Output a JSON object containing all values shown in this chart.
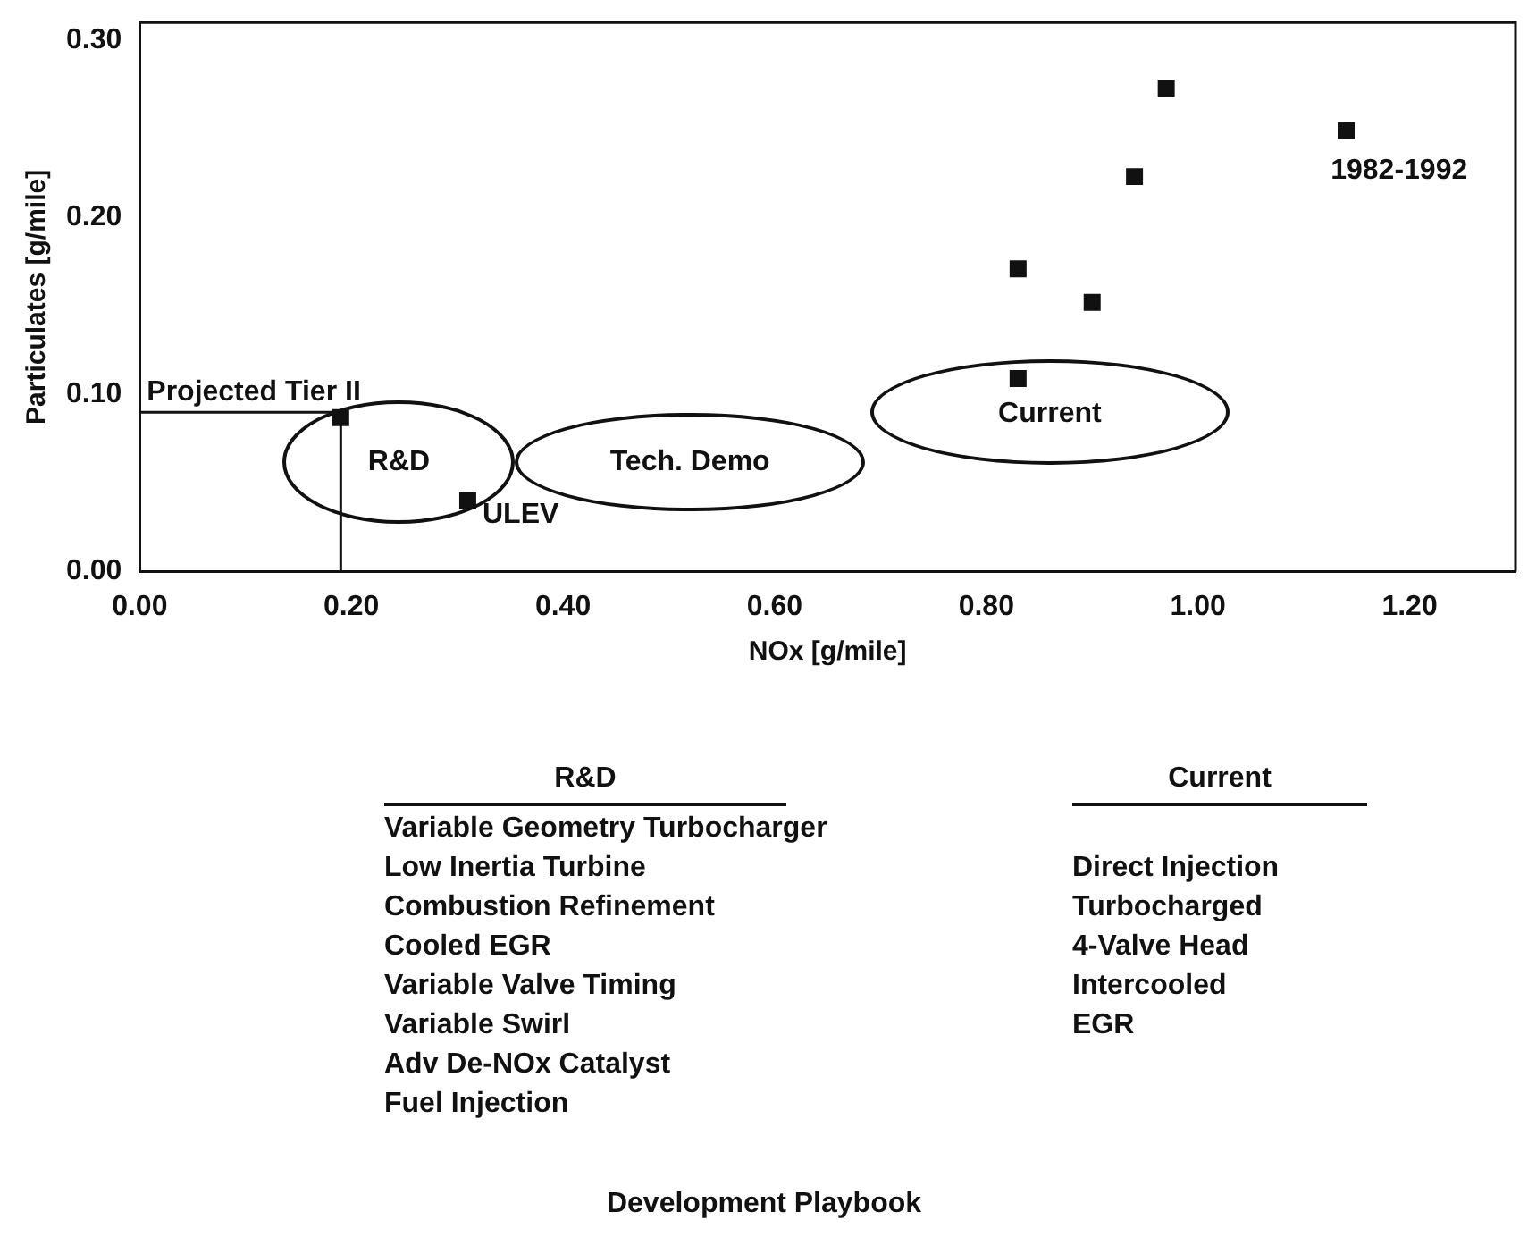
{
  "chart_data": {
    "type": "scatter",
    "xlabel": "NOx [g/mile]",
    "ylabel": "Particulates [g/mile]",
    "x": [
      0.19,
      0.31,
      0.83,
      0.83,
      0.9,
      0.94,
      0.97,
      1.14
    ],
    "values": [
      0.087,
      0.04,
      0.171,
      0.109,
      0.152,
      0.223,
      0.273,
      0.249
    ],
    "color": "#111111",
    "marker": "square",
    "xlim": [
      0,
      1.3
    ],
    "xticks": [
      {
        "value": 0,
        "label": "0.00"
      },
      {
        "value": 0.2,
        "label": "0.20"
      },
      {
        "value": 0.4,
        "label": "0.40"
      },
      {
        "value": 0.6,
        "label": "0.60"
      },
      {
        "value": 0.8,
        "label": "0.80"
      },
      {
        "value": 1,
        "label": "1.00"
      },
      {
        "value": 1.2,
        "label": "1.20"
      }
    ],
    "ylim": [
      0,
      0.31
    ],
    "yticks": [
      {
        "value": 0,
        "label": "0.00"
      },
      {
        "value": 0.1,
        "label": "0.10"
      },
      {
        "value": 0.2,
        "label": "0.20"
      },
      {
        "value": 0.3,
        "label": "0.30"
      }
    ],
    "grid": false,
    "legend": false,
    "ref_lines": [
      {
        "axis": "y",
        "value": 0.09,
        "label": "Projected Tier II",
        "color": "#111111"
      },
      {
        "axis": "x",
        "value": 0.19,
        "color": "#111111"
      }
    ],
    "annotations": [
      "R&D",
      "Tech. Demo",
      "Current",
      "ULEV",
      "1982-1992",
      "R&D\nVariable Geometry Turbocharger\nLow Inertia Turbine\nCombustion Refinement\nCooled EGR\nVariable Valve Timing\nVariable Swirl\nAdv De-NOx Catalyst\nFuel Injection",
      "Current\n\nDirect Injection\nTurbocharged\n4-Valve Head\nIntercooled\nEGR",
      "Development Playbook"
    ]
  }
}
